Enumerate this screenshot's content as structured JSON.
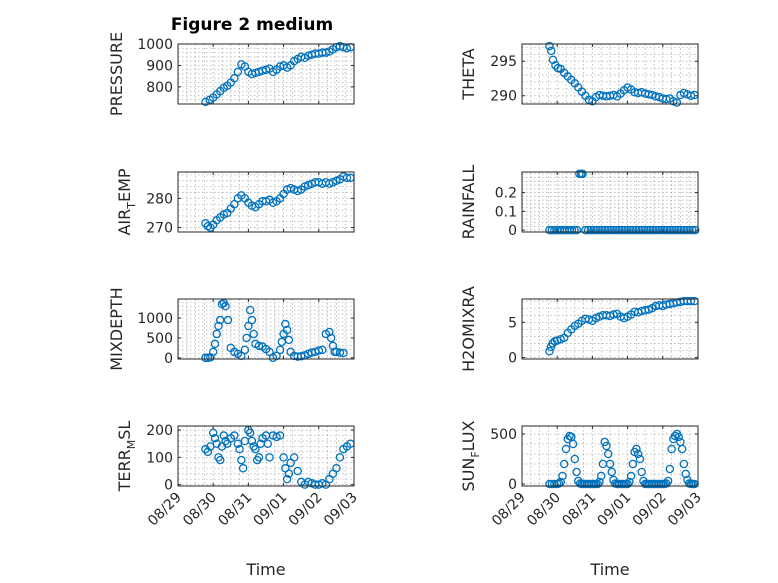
{
  "figure_title": "Figure 2 medium",
  "accent_color": "#0072bd",
  "chart_data": [
    {
      "type": "scatter",
      "ylabel": "PRESSURE",
      "ylabel_sub": "",
      "ylim": [
        720,
        1000
      ],
      "yticks": [
        800,
        900,
        1000
      ],
      "ytick_labels": [
        "800",
        "900",
        "1000"
      ],
      "xlim": [
        0,
        5
      ],
      "xticks": [
        0,
        1,
        2,
        3,
        4,
        5
      ],
      "xtick_labels": [
        "08/29",
        "08/30",
        "08/31",
        "09/01",
        "09/02",
        "09/03"
      ],
      "show_xticks": false,
      "xlabel": "",
      "grid": true,
      "marker": "circle",
      "x": [
        0.78,
        0.9,
        1.0,
        1.1,
        1.2,
        1.3,
        1.4,
        1.5,
        1.6,
        1.7,
        1.8,
        1.9,
        2.0,
        2.1,
        2.2,
        2.3,
        2.4,
        2.5,
        2.6,
        2.7,
        2.8,
        2.9,
        3.0,
        3.1,
        3.2,
        3.3,
        3.4,
        3.5,
        3.6,
        3.7,
        3.8,
        3.9,
        4.0,
        4.1,
        4.2,
        4.3,
        4.4,
        4.5,
        4.6,
        4.7,
        4.8,
        4.9
      ],
      "y": [
        730,
        740,
        750,
        765,
        780,
        795,
        805,
        820,
        840,
        870,
        905,
        895,
        870,
        860,
        865,
        870,
        875,
        880,
        885,
        870,
        880,
        895,
        900,
        890,
        900,
        920,
        930,
        940,
        935,
        945,
        950,
        955,
        955,
        960,
        960,
        965,
        975,
        985,
        990,
        985,
        980,
        985
      ]
    },
    {
      "type": "scatter",
      "ylabel": "THETA",
      "ylabel_sub": "",
      "ylim": [
        288.8,
        297.5
      ],
      "yticks": [
        290,
        295
      ],
      "ytick_labels": [
        "290",
        "295"
      ],
      "xlim": [
        0,
        5
      ],
      "xticks": [
        0,
        1,
        2,
        3,
        4,
        5
      ],
      "xtick_labels": [
        "08/29",
        "08/30",
        "08/31",
        "09/01",
        "09/02",
        "09/03"
      ],
      "show_xticks": false,
      "xlabel": "",
      "grid": true,
      "marker": "circle",
      "x": [
        0.78,
        0.83,
        0.88,
        0.95,
        1.02,
        1.1,
        1.2,
        1.3,
        1.4,
        1.5,
        1.6,
        1.7,
        1.8,
        1.9,
        2.0,
        2.1,
        2.2,
        2.3,
        2.4,
        2.5,
        2.6,
        2.7,
        2.8,
        2.9,
        3.0,
        3.1,
        3.2,
        3.3,
        3.4,
        3.5,
        3.6,
        3.7,
        3.8,
        3.9,
        4.0,
        4.1,
        4.2,
        4.3,
        4.4,
        4.5,
        4.6,
        4.7,
        4.8,
        4.9
      ],
      "y": [
        297.2,
        296.5,
        295.2,
        294.4,
        294.0,
        293.9,
        293.3,
        292.8,
        292.3,
        291.8,
        291.2,
        290.6,
        290.0,
        289.4,
        289.2,
        289.8,
        290.1,
        290.0,
        289.9,
        290.0,
        290.1,
        289.9,
        290.3,
        290.8,
        291.2,
        290.9,
        290.5,
        290.4,
        290.5,
        290.3,
        290.2,
        290.1,
        289.9,
        289.8,
        289.6,
        289.5,
        289.6,
        289.2,
        289.0,
        290.1,
        290.4,
        290.2,
        290.0,
        290.1
      ]
    },
    {
      "type": "scatter",
      "ylabel": "AIR",
      "ylabel_sub": "T",
      "ylabel_suffix": "EMP",
      "ylim": [
        268.5,
        289
      ],
      "yticks": [
        270,
        280
      ],
      "ytick_labels": [
        "270",
        "280"
      ],
      "xlim": [
        0,
        5
      ],
      "xticks": [
        0,
        1,
        2,
        3,
        4,
        5
      ],
      "xtick_labels": [
        "08/29",
        "08/30",
        "08/31",
        "09/01",
        "09/02",
        "09/03"
      ],
      "show_xticks": false,
      "xlabel": "",
      "grid": true,
      "marker": "circle",
      "x": [
        0.78,
        0.85,
        0.92,
        1.0,
        1.1,
        1.2,
        1.3,
        1.4,
        1.5,
        1.6,
        1.7,
        1.8,
        1.9,
        2.0,
        2.1,
        2.2,
        2.3,
        2.4,
        2.5,
        2.6,
        2.7,
        2.8,
        2.9,
        3.0,
        3.1,
        3.2,
        3.3,
        3.4,
        3.5,
        3.6,
        3.7,
        3.8,
        3.9,
        4.0,
        4.1,
        4.2,
        4.3,
        4.4,
        4.5,
        4.6,
        4.7,
        4.8,
        4.9
      ],
      "y": [
        271.5,
        270.5,
        270.0,
        271.0,
        272.5,
        273.5,
        274.5,
        275.0,
        276.5,
        278.0,
        280.0,
        281.0,
        280.0,
        278.5,
        277.5,
        277.0,
        278.0,
        279.0,
        279.0,
        279.5,
        278.5,
        279.0,
        280.0,
        281.5,
        283.0,
        283.5,
        283.0,
        282.5,
        283.0,
        284.0,
        284.5,
        285.0,
        285.5,
        285.5,
        285.0,
        285.5,
        285.0,
        285.5,
        286.0,
        286.5,
        287.5,
        287.0,
        287.0
      ]
    },
    {
      "type": "scatter",
      "ylabel": "RAINFALL",
      "ylabel_sub": "",
      "ylim": [
        -0.01,
        0.31
      ],
      "yticks": [
        0,
        0.1,
        0.2
      ],
      "ytick_labels": [
        "0",
        "0.1",
        "0.2"
      ],
      "xlim": [
        0,
        5
      ],
      "xticks": [
        0,
        1,
        2,
        3,
        4,
        5
      ],
      "xtick_labels": [
        "08/29",
        "08/30",
        "08/31",
        "09/01",
        "09/02",
        "09/03"
      ],
      "show_xticks": false,
      "xlabel": "",
      "grid": true,
      "marker": "circle",
      "x": [
        0.78,
        0.85,
        0.92,
        1.0,
        1.07,
        1.14,
        1.21,
        1.28,
        1.35,
        1.42,
        1.49,
        1.56,
        1.63,
        1.68,
        1.72,
        1.8,
        1.88,
        1.96,
        2.04,
        2.12,
        2.2,
        2.28,
        2.36,
        2.44,
        2.52,
        2.6,
        2.68,
        2.76,
        2.84,
        2.92,
        3.0,
        3.08,
        3.16,
        3.24,
        3.32,
        3.4,
        3.48,
        3.56,
        3.64,
        3.72,
        3.8,
        3.88,
        3.96,
        4.04,
        4.12,
        4.2,
        4.28,
        4.36,
        4.44,
        4.52,
        4.6,
        4.68,
        4.76,
        4.84,
        4.92
      ],
      "y": [
        0,
        0,
        0,
        0,
        0,
        0,
        0,
        0,
        0,
        0,
        0,
        0,
        0.3,
        0.3,
        0.3,
        0,
        0,
        0,
        0,
        0,
        0,
        0,
        0,
        0,
        0,
        0,
        0,
        0,
        0,
        0,
        0,
        0,
        0,
        0,
        0,
        0,
        0,
        0,
        0,
        0,
        0,
        0,
        0,
        0,
        0,
        0,
        0,
        0,
        0,
        0,
        0,
        0,
        0,
        0,
        0
      ]
    },
    {
      "type": "scatter",
      "ylabel": "MIXDEPTH",
      "ylabel_sub": "",
      "ylim": [
        -30,
        1480
      ],
      "yticks": [
        0,
        500,
        1000
      ],
      "ytick_labels": [
        "0",
        "500",
        "1000"
      ],
      "xlim": [
        0,
        5
      ],
      "xticks": [
        0,
        1,
        2,
        3,
        4,
        5
      ],
      "xtick_labels": [
        "08/29",
        "08/30",
        "08/31",
        "09/01",
        "09/02",
        "09/03"
      ],
      "show_xticks": false,
      "xlabel": "",
      "grid": true,
      "marker": "circle",
      "x": [
        0.78,
        0.85,
        0.92,
        1.0,
        1.05,
        1.1,
        1.15,
        1.2,
        1.25,
        1.3,
        1.35,
        1.42,
        1.5,
        1.6,
        1.7,
        1.8,
        1.9,
        1.95,
        2.0,
        2.05,
        2.1,
        2.15,
        2.2,
        2.3,
        2.4,
        2.5,
        2.6,
        2.7,
        2.8,
        2.9,
        2.95,
        3.0,
        3.05,
        3.1,
        3.15,
        3.2,
        3.3,
        3.4,
        3.5,
        3.6,
        3.7,
        3.8,
        3.9,
        4.0,
        4.1,
        4.2,
        4.3,
        4.35,
        4.4,
        4.45,
        4.5,
        4.6,
        4.7
      ],
      "y": [
        0,
        0,
        10,
        150,
        350,
        600,
        800,
        950,
        1350,
        1380,
        1300,
        950,
        250,
        150,
        100,
        50,
        200,
        500,
        800,
        1200,
        950,
        600,
        350,
        300,
        280,
        220,
        150,
        0,
        50,
        200,
        400,
        600,
        850,
        700,
        450,
        150,
        50,
        30,
        40,
        60,
        100,
        130,
        150,
        180,
        200,
        600,
        650,
        500,
        300,
        150,
        150,
        130,
        120
      ]
    },
    {
      "type": "scatter",
      "ylabel": "H2OMIXRA",
      "ylabel_sub": "",
      "ylim": [
        -0.2,
        8.3
      ],
      "yticks": [
        0,
        5
      ],
      "ytick_labels": [
        "0",
        "5"
      ],
      "xlim": [
        0,
        5
      ],
      "xticks": [
        0,
        1,
        2,
        3,
        4,
        5
      ],
      "xtick_labels": [
        "08/29",
        "08/30",
        "08/31",
        "09/01",
        "09/02",
        "09/03"
      ],
      "show_xticks": false,
      "xlabel": "",
      "grid": true,
      "marker": "circle",
      "x": [
        0.78,
        0.82,
        0.87,
        0.93,
        1.0,
        1.1,
        1.2,
        1.3,
        1.4,
        1.5,
        1.6,
        1.7,
        1.8,
        1.9,
        2.0,
        2.1,
        2.2,
        2.3,
        2.4,
        2.5,
        2.6,
        2.7,
        2.8,
        2.9,
        3.0,
        3.1,
        3.2,
        3.3,
        3.4,
        3.5,
        3.6,
        3.7,
        3.8,
        3.9,
        4.0,
        4.1,
        4.2,
        4.3,
        4.4,
        4.5,
        4.6,
        4.7,
        4.8,
        4.9
      ],
      "y": [
        0.9,
        1.5,
        2.0,
        2.3,
        2.4,
        2.6,
        2.8,
        3.5,
        4.0,
        4.5,
        4.8,
        5.2,
        5.5,
        5.4,
        5.2,
        5.6,
        5.8,
        6.0,
        6.0,
        5.9,
        6.1,
        6.2,
        5.8,
        5.6,
        5.8,
        6.1,
        6.5,
        6.4,
        6.6,
        6.7,
        6.8,
        7.0,
        7.3,
        7.4,
        7.3,
        7.5,
        7.6,
        7.7,
        7.8,
        7.9,
        8.0,
        8.0,
        8.0,
        8.0
      ]
    },
    {
      "type": "scatter",
      "ylabel": "TERR",
      "ylabel_sub": "M",
      "ylabel_suffix": "SL",
      "ylim": [
        -5,
        215
      ],
      "yticks": [
        0,
        100,
        200
      ],
      "ytick_labels": [
        "0",
        "100",
        "200"
      ],
      "xlim": [
        0,
        5
      ],
      "xticks": [
        0,
        1,
        2,
        3,
        4,
        5
      ],
      "xtick_labels": [
        "08/29",
        "08/30",
        "08/31",
        "09/01",
        "09/02",
        "09/03"
      ],
      "show_xticks": true,
      "xlabel": "Time",
      "grid": true,
      "marker": "circle",
      "x": [
        0.78,
        0.85,
        0.92,
        1.0,
        1.05,
        1.1,
        1.15,
        1.2,
        1.25,
        1.3,
        1.35,
        1.4,
        1.5,
        1.6,
        1.7,
        1.75,
        1.8,
        1.85,
        1.9,
        2.0,
        2.05,
        2.1,
        2.15,
        2.2,
        2.25,
        2.3,
        2.35,
        2.4,
        2.5,
        2.55,
        2.6,
        2.7,
        2.8,
        2.9,
        3.0,
        3.05,
        3.1,
        3.15,
        3.2,
        3.3,
        3.4,
        3.5,
        3.6,
        3.7,
        3.8,
        3.9,
        4.0,
        4.1,
        4.2,
        4.3,
        4.4,
        4.5,
        4.6,
        4.7,
        4.8,
        4.9
      ],
      "y": [
        130,
        120,
        140,
        190,
        170,
        150,
        100,
        90,
        140,
        180,
        160,
        150,
        170,
        180,
        150,
        130,
        90,
        60,
        160,
        200,
        190,
        160,
        140,
        130,
        90,
        100,
        150,
        170,
        180,
        150,
        100,
        180,
        175,
        180,
        100,
        60,
        20,
        40,
        80,
        100,
        50,
        10,
        0,
        10,
        5,
        0,
        0,
        5,
        0,
        20,
        40,
        60,
        100,
        130,
        140,
        150
      ]
    },
    {
      "type": "scatter",
      "ylabel": "SUN",
      "ylabel_sub": "F",
      "ylabel_suffix": "LUX",
      "ylim": [
        -20,
        580
      ],
      "yticks": [
        0,
        500
      ],
      "ytick_labels": [
        "0",
        "500"
      ],
      "xlim": [
        0,
        5
      ],
      "xticks": [
        0,
        1,
        2,
        3,
        4,
        5
      ],
      "xtick_labels": [
        "08/29",
        "08/30",
        "08/31",
        "09/01",
        "09/02",
        "09/03"
      ],
      "show_xticks": true,
      "xlabel": "Time",
      "grid": true,
      "marker": "circle",
      "x": [
        0.78,
        0.85,
        0.92,
        1.0,
        1.05,
        1.1,
        1.15,
        1.2,
        1.25,
        1.3,
        1.35,
        1.4,
        1.45,
        1.5,
        1.55,
        1.6,
        1.65,
        1.7,
        1.75,
        1.8,
        1.85,
        1.9,
        1.95,
        2.0,
        2.05,
        2.1,
        2.15,
        2.2,
        2.25,
        2.3,
        2.35,
        2.4,
        2.45,
        2.5,
        2.55,
        2.6,
        2.65,
        2.7,
        2.75,
        2.8,
        2.85,
        2.9,
        2.95,
        3.0,
        3.05,
        3.1,
        3.15,
        3.2,
        3.25,
        3.3,
        3.35,
        3.4,
        3.45,
        3.5,
        3.55,
        3.6,
        3.65,
        3.7,
        3.75,
        3.8,
        3.85,
        3.9,
        3.95,
        4.0,
        4.05,
        4.1,
        4.15,
        4.2,
        4.25,
        4.3,
        4.35,
        4.4,
        4.45,
        4.5,
        4.55,
        4.6,
        4.65,
        4.7,
        4.75,
        4.8,
        4.85,
        4.9
      ],
      "y": [
        0,
        0,
        0,
        0,
        5,
        20,
        80,
        200,
        350,
        450,
        480,
        470,
        400,
        250,
        120,
        30,
        5,
        0,
        0,
        0,
        0,
        0,
        0,
        0,
        0,
        0,
        0,
        20,
        80,
        200,
        420,
        380,
        300,
        200,
        120,
        40,
        5,
        0,
        0,
        0,
        0,
        0,
        0,
        0,
        20,
        80,
        200,
        320,
        350,
        300,
        250,
        120,
        30,
        0,
        0,
        0,
        0,
        0,
        0,
        0,
        0,
        0,
        0,
        0,
        0,
        5,
        30,
        150,
        350,
        450,
        480,
        500,
        470,
        420,
        350,
        200,
        100,
        40,
        5,
        0,
        0,
        0
      ]
    }
  ]
}
